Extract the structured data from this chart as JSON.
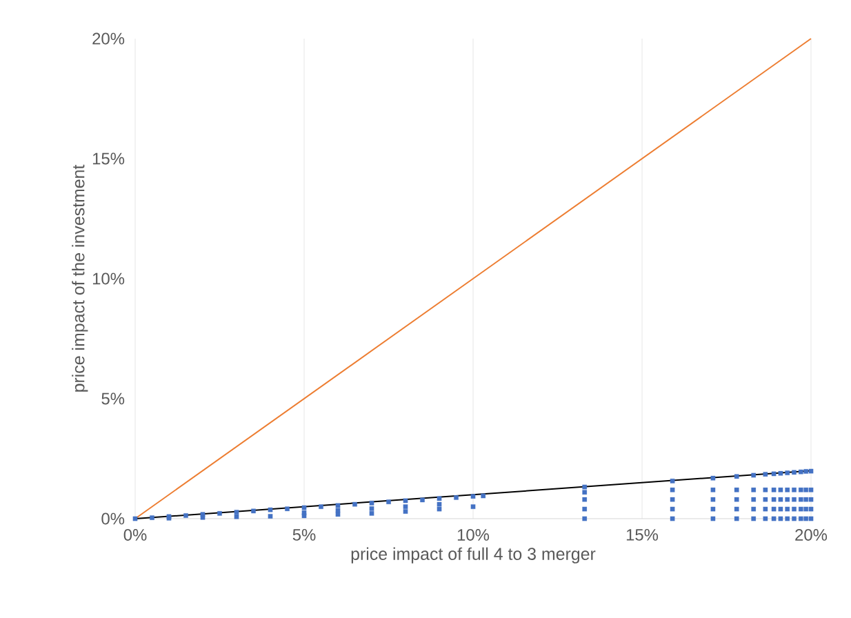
{
  "chart_data": {
    "type": "line",
    "xlabel": "price impact of full 4 to 3 merger",
    "ylabel": "price impact of the investment",
    "xlim": [
      0,
      20
    ],
    "ylim": [
      0,
      20
    ],
    "xticks": [
      {
        "value": 0,
        "label": "0%"
      },
      {
        "value": 5,
        "label": "5%"
      },
      {
        "value": 10,
        "label": "10%"
      },
      {
        "value": 15,
        "label": "15%"
      },
      {
        "value": 20,
        "label": "20%"
      }
    ],
    "yticks": [
      {
        "value": 0,
        "label": "0%"
      },
      {
        "value": 5,
        "label": "5%"
      },
      {
        "value": 10,
        "label": "10%"
      },
      {
        "value": 15,
        "label": "15%"
      },
      {
        "value": 20,
        "label": "20%"
      }
    ],
    "grid": "x",
    "series": [
      {
        "color": "#ed7d31",
        "x": [
          0,
          20
        ],
        "values": [
          0,
          20
        ]
      },
      {
        "type": "scatter",
        "color": "#4472c4",
        "x": [
          0,
          0.5,
          1,
          1,
          1.5,
          2,
          2,
          2.5,
          3,
          3,
          3.5,
          4,
          4,
          4.5,
          5,
          5,
          5,
          5.5,
          6,
          6,
          6,
          6.5,
          7,
          7,
          7,
          7.5,
          8,
          8,
          8,
          8.5,
          9,
          9,
          9,
          9.5,
          10,
          10,
          10.3,
          13.3,
          13.3,
          13.3,
          13.3,
          13.3,
          15.9,
          15.9,
          15.9,
          15.9,
          15.9,
          17.1,
          17.1,
          17.1,
          17.1,
          17.1,
          17.8,
          17.8,
          17.8,
          17.8,
          17.8,
          18.3,
          18.3,
          18.3,
          18.3,
          18.3,
          18.65,
          18.65,
          18.65,
          18.65,
          18.65,
          18.9,
          18.9,
          18.9,
          18.9,
          18.9,
          19.1,
          19.1,
          19.1,
          19.1,
          19.1,
          19.3,
          19.3,
          19.3,
          19.3,
          19.3,
          19.5,
          19.5,
          19.5,
          19.5,
          19.5,
          19.7,
          19.7,
          19.7,
          19.7,
          19.7,
          19.85,
          19.85,
          19.85,
          19.85,
          19.85,
          20,
          20,
          20,
          20,
          20
        ],
        "values": [
          0,
          0.04,
          0.09,
          0.02,
          0.13,
          0.18,
          0.05,
          0.22,
          0.27,
          0.08,
          0.32,
          0.37,
          0.1,
          0.41,
          0.46,
          0.12,
          0.25,
          0.5,
          0.55,
          0.18,
          0.35,
          0.6,
          0.65,
          0.22,
          0.42,
          0.7,
          0.75,
          0.3,
          0.5,
          0.78,
          0.84,
          0.4,
          0.6,
          0.88,
          0.93,
          0.5,
          0.95,
          0,
          0.4,
          0.8,
          1.1,
          1.32,
          0,
          0.4,
          0.8,
          1.2,
          1.57,
          0,
          0.4,
          0.8,
          1.2,
          1.69,
          0,
          0.4,
          0.8,
          1.2,
          1.76,
          0,
          0.4,
          0.8,
          1.2,
          1.81,
          0,
          0.4,
          0.8,
          1.2,
          1.85,
          0,
          0.4,
          0.8,
          1.2,
          1.87,
          0,
          0.4,
          0.8,
          1.2,
          1.89,
          0,
          0.4,
          0.8,
          1.2,
          1.91,
          0,
          0.4,
          0.8,
          1.2,
          1.93,
          0,
          0.4,
          0.8,
          1.2,
          1.95,
          0,
          0.4,
          0.8,
          1.2,
          1.97,
          0,
          0.4,
          0.8,
          1.2,
          1.98
        ]
      },
      {
        "color": "#000000",
        "x": [
          0,
          20
        ],
        "values": [
          0,
          2
        ]
      }
    ]
  }
}
